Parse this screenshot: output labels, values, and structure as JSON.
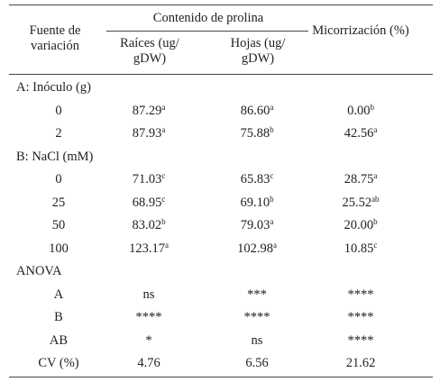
{
  "header": {
    "source": "Fuente de variación",
    "group": "Contenido de prolina",
    "columns": [
      "Raíces (ug/ gDW)",
      "Hojas (ug/ gDW)",
      "Micorrización (%)"
    ]
  },
  "sections": [
    {
      "title": "A: Inóculo (g)",
      "rows": [
        {
          "label": "0",
          "cells": [
            {
              "value": "87.29",
              "sup": "a"
            },
            {
              "value": "86.60",
              "sup": "a"
            },
            {
              "value": "0.00",
              "sup": "b"
            }
          ]
        },
        {
          "label": "2",
          "cells": [
            {
              "value": "87.93",
              "sup": "a"
            },
            {
              "value": "75.88",
              "sup": "b"
            },
            {
              "value": "42.56",
              "sup": "a"
            }
          ]
        }
      ]
    },
    {
      "title": "B: NaCl (mM)",
      "rows": [
        {
          "label": "0",
          "cells": [
            {
              "value": "71.03",
              "sup": "c"
            },
            {
              "value": "65.83",
              "sup": "c"
            },
            {
              "value": "28.75",
              "sup": "a"
            }
          ]
        },
        {
          "label": "25",
          "cells": [
            {
              "value": "68.95",
              "sup": "c"
            },
            {
              "value": "69.10",
              "sup": "b"
            },
            {
              "value": "25.52",
              "sup": "ab"
            }
          ]
        },
        {
          "label": "50",
          "cells": [
            {
              "value": "83.02",
              "sup": "b"
            },
            {
              "value": "79.03",
              "sup": "a"
            },
            {
              "value": "20.00",
              "sup": "b"
            }
          ]
        },
        {
          "label": "100",
          "cells": [
            {
              "value": "123.17",
              "sup": "a"
            },
            {
              "value": "102.98",
              "sup": "a"
            },
            {
              "value": "10.85",
              "sup": "c"
            }
          ]
        }
      ]
    },
    {
      "title": "ANOVA",
      "rows": [
        {
          "label": "A",
          "cells": [
            {
              "value": "ns"
            },
            {
              "value": "***"
            },
            {
              "value": "****"
            }
          ]
        },
        {
          "label": "B",
          "cells": [
            {
              "value": "****"
            },
            {
              "value": "****"
            },
            {
              "value": "****"
            }
          ]
        },
        {
          "label": "AB",
          "cells": [
            {
              "value": "*"
            },
            {
              "value": "ns"
            },
            {
              "value": "****"
            }
          ]
        },
        {
          "label": "CV (%)",
          "cells": [
            {
              "value": "4.76"
            },
            {
              "value": "6.56"
            },
            {
              "value": "21.62"
            }
          ]
        }
      ]
    }
  ]
}
